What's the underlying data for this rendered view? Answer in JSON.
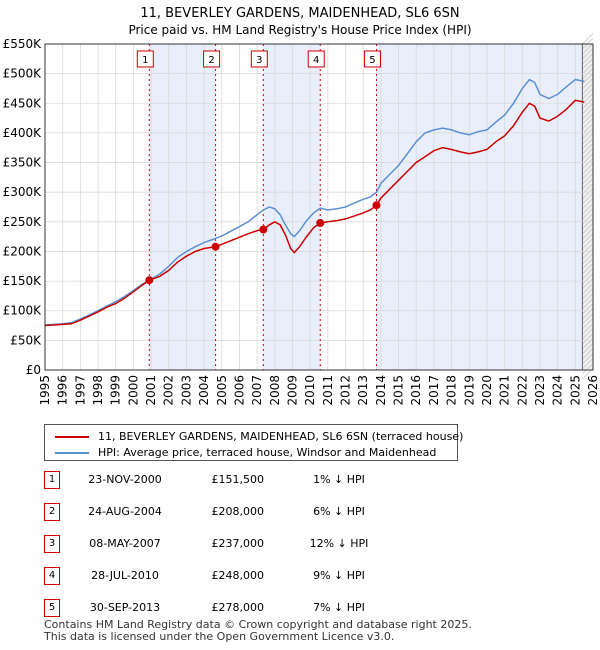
{
  "chart_data": {
    "type": "line",
    "title": "11, BEVERLEY GARDENS, MAIDENHEAD, SL6 6SN",
    "subtitle": "Price paid vs. HM Land Registry's House Price Index (HPI)",
    "xlim": [
      1995,
      2026
    ],
    "ylim": [
      0,
      550000
    ],
    "y_ticks": [
      0,
      50000,
      100000,
      150000,
      200000,
      250000,
      300000,
      350000,
      400000,
      450000,
      500000,
      550000
    ],
    "y_tick_labels": [
      "£0",
      "£50K",
      "£100K",
      "£150K",
      "£200K",
      "£250K",
      "£300K",
      "£350K",
      "£400K",
      "£450K",
      "£500K",
      "£550K"
    ],
    "x_ticks": [
      1995,
      1996,
      1997,
      1998,
      1999,
      2000,
      2001,
      2002,
      2003,
      2004,
      2005,
      2006,
      2007,
      2008,
      2009,
      2010,
      2011,
      2012,
      2013,
      2014,
      2015,
      2016,
      2017,
      2018,
      2019,
      2020,
      2021,
      2022,
      2023,
      2024,
      2025,
      2026
    ],
    "x_tick_labels": [
      "1995",
      "1996",
      "1997",
      "1998",
      "1999",
      "2000",
      "2001",
      "2002",
      "2003",
      "2004",
      "2005",
      "2006",
      "2007",
      "2008",
      "2009",
      "2010",
      "2011",
      "2012",
      "2013",
      "2014",
      "2015",
      "2016",
      "2017",
      "2018",
      "2019",
      "2020",
      "2021",
      "2022",
      "2023",
      "2024",
      "2025",
      "2026"
    ],
    "future_from": 2025.4,
    "series": [
      {
        "name": "11, BEVERLEY GARDENS, MAIDENHEAD, SL6 6SN (terraced house)",
        "color": "#cc0000",
        "points": [
          [
            1995.0,
            75000
          ],
          [
            1995.5,
            76000
          ],
          [
            1996.0,
            77000
          ],
          [
            1996.5,
            78000
          ],
          [
            1997.0,
            84000
          ],
          [
            1997.5,
            91000
          ],
          [
            1998.0,
            98000
          ],
          [
            1998.5,
            106000
          ],
          [
            1999.0,
            112000
          ],
          [
            1999.5,
            121000
          ],
          [
            2000.0,
            132000
          ],
          [
            2000.5,
            143000
          ],
          [
            2000.9,
            151500
          ],
          [
            2001.5,
            158000
          ],
          [
            2002.0,
            168000
          ],
          [
            2002.5,
            182000
          ],
          [
            2003.0,
            192000
          ],
          [
            2003.5,
            200000
          ],
          [
            2004.0,
            205000
          ],
          [
            2004.65,
            208000
          ],
          [
            2005.0,
            212000
          ],
          [
            2005.5,
            218000
          ],
          [
            2006.0,
            224000
          ],
          [
            2006.5,
            230000
          ],
          [
            2007.0,
            235000
          ],
          [
            2007.35,
            237000
          ],
          [
            2007.7,
            245000
          ],
          [
            2008.0,
            250000
          ],
          [
            2008.3,
            245000
          ],
          [
            2008.6,
            228000
          ],
          [
            2008.9,
            205000
          ],
          [
            2009.1,
            198000
          ],
          [
            2009.4,
            208000
          ],
          [
            2009.8,
            225000
          ],
          [
            2010.2,
            240000
          ],
          [
            2010.57,
            248000
          ],
          [
            2011.0,
            250000
          ],
          [
            2011.5,
            252000
          ],
          [
            2012.0,
            255000
          ],
          [
            2012.5,
            260000
          ],
          [
            2013.0,
            265000
          ],
          [
            2013.4,
            270000
          ],
          [
            2013.75,
            278000
          ],
          [
            2014.0,
            290000
          ],
          [
            2014.5,
            305000
          ],
          [
            2015.0,
            320000
          ],
          [
            2015.5,
            335000
          ],
          [
            2016.0,
            350000
          ],
          [
            2016.5,
            360000
          ],
          [
            2017.0,
            370000
          ],
          [
            2017.5,
            375000
          ],
          [
            2018.0,
            372000
          ],
          [
            2018.5,
            368000
          ],
          [
            2019.0,
            365000
          ],
          [
            2019.5,
            368000
          ],
          [
            2020.0,
            372000
          ],
          [
            2020.5,
            385000
          ],
          [
            2021.0,
            395000
          ],
          [
            2021.5,
            412000
          ],
          [
            2022.0,
            435000
          ],
          [
            2022.4,
            450000
          ],
          [
            2022.7,
            445000
          ],
          [
            2023.0,
            425000
          ],
          [
            2023.5,
            420000
          ],
          [
            2024.0,
            428000
          ],
          [
            2024.5,
            440000
          ],
          [
            2025.0,
            455000
          ],
          [
            2025.5,
            452000
          ]
        ]
      },
      {
        "name": "HPI: Average price, terraced house, Windsor and Maidenhead",
        "color": "#5b8fd4",
        "points": [
          [
            1995.0,
            76000
          ],
          [
            1995.5,
            77000
          ],
          [
            1996.0,
            78000
          ],
          [
            1996.5,
            80000
          ],
          [
            1997.0,
            86000
          ],
          [
            1997.5,
            93000
          ],
          [
            1998.0,
            100000
          ],
          [
            1998.5,
            108000
          ],
          [
            1999.0,
            115000
          ],
          [
            1999.5,
            124000
          ],
          [
            2000.0,
            134000
          ],
          [
            2000.5,
            145000
          ],
          [
            2001.0,
            153000
          ],
          [
            2001.5,
            162000
          ],
          [
            2002.0,
            175000
          ],
          [
            2002.5,
            190000
          ],
          [
            2003.0,
            200000
          ],
          [
            2003.5,
            208000
          ],
          [
            2004.0,
            215000
          ],
          [
            2004.65,
            222000
          ],
          [
            2005.0,
            226000
          ],
          [
            2005.5,
            234000
          ],
          [
            2006.0,
            242000
          ],
          [
            2006.5,
            250000
          ],
          [
            2007.0,
            262000
          ],
          [
            2007.35,
            270000
          ],
          [
            2007.7,
            275000
          ],
          [
            2008.0,
            272000
          ],
          [
            2008.3,
            262000
          ],
          [
            2008.6,
            245000
          ],
          [
            2008.9,
            230000
          ],
          [
            2009.1,
            225000
          ],
          [
            2009.4,
            235000
          ],
          [
            2009.8,
            252000
          ],
          [
            2010.2,
            265000
          ],
          [
            2010.57,
            273000
          ],
          [
            2011.0,
            270000
          ],
          [
            2011.5,
            272000
          ],
          [
            2012.0,
            275000
          ],
          [
            2012.5,
            282000
          ],
          [
            2013.0,
            288000
          ],
          [
            2013.4,
            292000
          ],
          [
            2013.75,
            300000
          ],
          [
            2014.0,
            315000
          ],
          [
            2014.5,
            330000
          ],
          [
            2015.0,
            345000
          ],
          [
            2015.5,
            365000
          ],
          [
            2016.0,
            385000
          ],
          [
            2016.5,
            400000
          ],
          [
            2017.0,
            405000
          ],
          [
            2017.5,
            408000
          ],
          [
            2018.0,
            405000
          ],
          [
            2018.5,
            400000
          ],
          [
            2019.0,
            397000
          ],
          [
            2019.5,
            402000
          ],
          [
            2020.0,
            405000
          ],
          [
            2020.5,
            418000
          ],
          [
            2021.0,
            430000
          ],
          [
            2021.5,
            450000
          ],
          [
            2022.0,
            475000
          ],
          [
            2022.4,
            490000
          ],
          [
            2022.7,
            485000
          ],
          [
            2023.0,
            465000
          ],
          [
            2023.5,
            458000
          ],
          [
            2024.0,
            465000
          ],
          [
            2024.5,
            478000
          ],
          [
            2025.0,
            490000
          ],
          [
            2025.5,
            487000
          ]
        ]
      }
    ],
    "sales": [
      {
        "id": "1",
        "x": 2000.9,
        "price": 151500
      },
      {
        "id": "2",
        "x": 2004.65,
        "price": 208000
      },
      {
        "id": "3",
        "x": 2007.35,
        "price": 237000
      },
      {
        "id": "4",
        "x": 2010.57,
        "price": 248000
      },
      {
        "id": "5",
        "x": 2013.75,
        "price": 278000
      }
    ],
    "legend": {
      "red_label": "11, BEVERLEY GARDENS, MAIDENHEAD, SL6 6SN (terraced house)",
      "blue_label": "HPI: Average price, terraced house, Windsor and Maidenhead",
      "placement": "below"
    },
    "style": {
      "red": "#cc0000",
      "blue": "#5b8fd4",
      "shade": "#e8eefa",
      "grid": "#d9d9d9"
    }
  },
  "transactions": [
    {
      "id": "1",
      "date": "23-NOV-2000",
      "price": "£151,500",
      "hpi": "1% ↓ HPI"
    },
    {
      "id": "2",
      "date": "24-AUG-2004",
      "price": "£208,000",
      "hpi": "6% ↓ HPI"
    },
    {
      "id": "3",
      "date": "08-MAY-2007",
      "price": "£237,000",
      "hpi": "12% ↓ HPI"
    },
    {
      "id": "4",
      "date": "28-JUL-2010",
      "price": "£248,000",
      "hpi": "9% ↓ HPI"
    },
    {
      "id": "5",
      "date": "30-SEP-2013",
      "price": "£278,000",
      "hpi": "7% ↓ HPI"
    }
  ],
  "footer": {
    "line1": "Contains HM Land Registry data © Crown copyright and database right 2025.",
    "line2": "This data is licensed under the Open Government Licence v3.0."
  }
}
